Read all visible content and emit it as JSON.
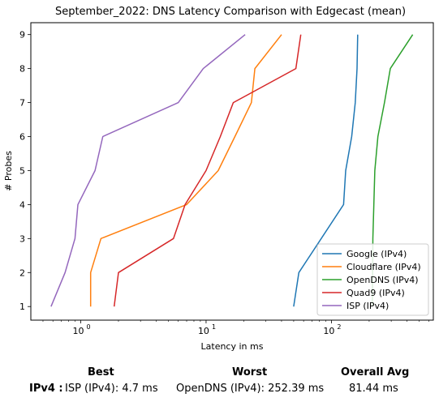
{
  "chart_data": {
    "type": "line",
    "title": "September_2022: DNS Latency Comparison with Edgecast (mean)",
    "xlabel": "Latency in ms",
    "ylabel": "# Probes",
    "xscale": "log",
    "xlim": [
      0.4,
      650
    ],
    "ylim": [
      0.6,
      9.35
    ],
    "xticks": [
      {
        "value": 1,
        "label": "10",
        "exp": "0"
      },
      {
        "value": 10,
        "label": "10",
        "exp": "1"
      },
      {
        "value": 100,
        "label": "10",
        "exp": "2"
      }
    ],
    "yticks": [
      1,
      2,
      3,
      4,
      5,
      6,
      7,
      8,
      9
    ],
    "grid": false,
    "legend_position": "bottom-right",
    "series": [
      {
        "name": "Google (IPv4)",
        "color": "#1f77b4",
        "points": [
          [
            50,
            1
          ],
          [
            55,
            2
          ],
          [
            125,
            4
          ],
          [
            130,
            5
          ],
          [
            145,
            6
          ],
          [
            155,
            7
          ],
          [
            160,
            8
          ],
          [
            162,
            9
          ]
        ]
      },
      {
        "name": "Cloudflare (IPv4)",
        "color": "#ff7f0e",
        "points": [
          [
            1.2,
            1
          ],
          [
            1.2,
            2
          ],
          [
            1.45,
            3
          ],
          [
            7,
            4
          ],
          [
            12.5,
            5
          ],
          [
            17,
            6
          ],
          [
            23,
            7
          ],
          [
            24.5,
            8
          ],
          [
            40,
            9
          ]
        ]
      },
      {
        "name": "OpenDNS (IPv4)",
        "color": "#2ca02c",
        "points": [
          [
            212,
            1
          ],
          [
            213,
            2
          ],
          [
            214,
            3
          ],
          [
            218,
            4
          ],
          [
            222,
            5
          ],
          [
            235,
            6
          ],
          [
            265,
            7
          ],
          [
            295,
            8
          ],
          [
            445,
            9
          ]
        ]
      },
      {
        "name": "Quad9 (IPv4)",
        "color": "#d62728",
        "points": [
          [
            1.85,
            1
          ],
          [
            2.0,
            2
          ],
          [
            5.5,
            3
          ],
          [
            6.8,
            4
          ],
          [
            10,
            5
          ],
          [
            13,
            6
          ],
          [
            16.5,
            7
          ],
          [
            52,
            8
          ],
          [
            57,
            9
          ]
        ]
      },
      {
        "name": "ISP (IPv4)",
        "color": "#9467bd",
        "points": [
          [
            0.58,
            1
          ],
          [
            0.75,
            2
          ],
          [
            0.9,
            3
          ],
          [
            0.95,
            4
          ],
          [
            1.3,
            5
          ],
          [
            1.5,
            6
          ],
          [
            6,
            7
          ],
          [
            9.5,
            8
          ],
          [
            20.5,
            9
          ]
        ]
      }
    ]
  },
  "stats": {
    "headers": {
      "best": "Best",
      "worst": "Worst",
      "avg": "Overall Avg"
    },
    "row_label": "IPv4 :",
    "best": "ISP (IPv4): 4.7 ms",
    "worst": "OpenDNS (IPv4): 252.39 ms",
    "avg": "81.44 ms"
  }
}
